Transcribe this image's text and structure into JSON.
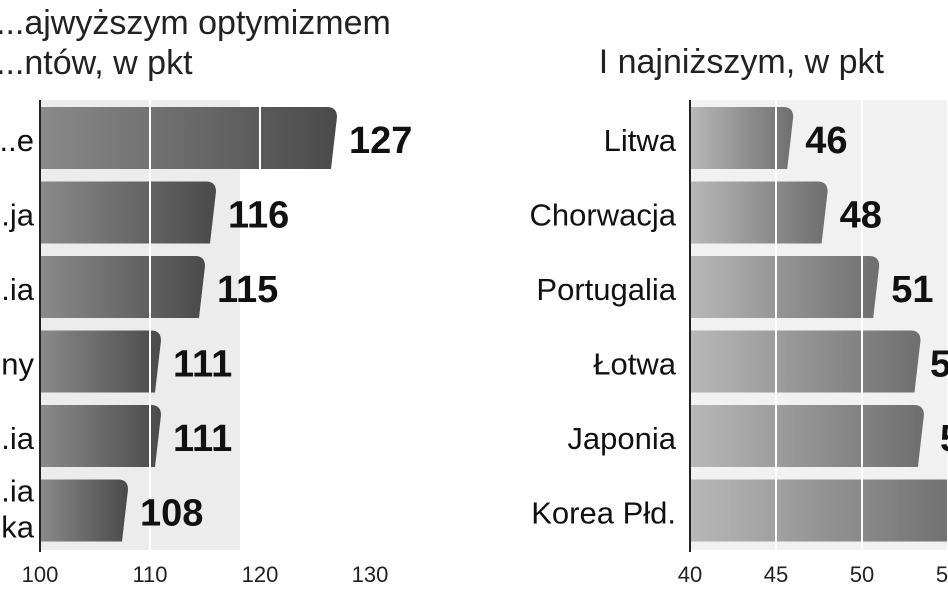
{
  "chart_data": [
    {
      "type": "bar",
      "orientation": "horizontal",
      "title": "...ajwyższym optymizmem\n...ntów, w pkt",
      "categories": [
        "...e",
        "...ja",
        "...ia",
        "...ny",
        "...ia",
        "...ia\n...ka"
      ],
      "values": [
        127,
        116,
        115,
        111,
        111,
        108
      ],
      "xlim": [
        100,
        130
      ],
      "xticks": [
        100,
        110,
        120,
        130
      ],
      "grid": true
    },
    {
      "type": "bar",
      "orientation": "horizontal",
      "title": "I najniższym, w pkt",
      "categories": [
        "Litwa",
        "Chorwacja",
        "Portugalia",
        "Łotwa",
        "Japonia",
        "Korea Płd."
      ],
      "values": [
        46,
        48,
        51,
        5,
        5,
        null
      ],
      "value_labels": [
        "46",
        "48",
        "51",
        "5",
        "5",
        ""
      ],
      "xlim": [
        40,
        55
      ],
      "xticks": [
        40,
        45,
        50,
        5
      ],
      "grid": true
    }
  ]
}
